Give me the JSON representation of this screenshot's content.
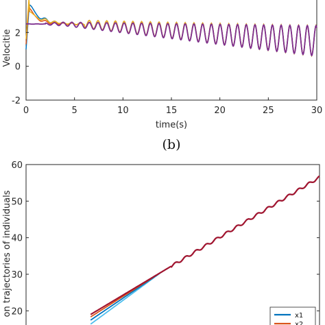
{
  "caption": "(b)",
  "chart_data": [
    {
      "type": "line",
      "xlabel": "time(s)",
      "ylabel": "Velocitie",
      "xlim": [
        0,
        30
      ],
      "ylim": [
        -2,
        4
      ],
      "xticks": [
        "0",
        "5",
        "10",
        "15",
        "20",
        "25",
        "30"
      ],
      "yticks": [
        "-2",
        "0",
        "2"
      ],
      "grid": false,
      "series": [
        {
          "color": "#0072BD",
          "values_desc": "transient"
        },
        {
          "color": "#D95319",
          "values_desc": "transient"
        },
        {
          "color": "#EDB120",
          "values_desc": "transient"
        },
        {
          "color": "#7E2F8E",
          "values_desc": "oscillation"
        }
      ],
      "oscillation": {
        "baseline": 2.5,
        "amplitude_start": 0.05,
        "amplitude_end": 0.9,
        "period": 0.9,
        "mean_end": 1.5
      }
    },
    {
      "type": "line",
      "xlabel": "",
      "ylabel": "on trajectories of individuals",
      "ylim": [
        15,
        60
      ],
      "yticks": [
        "20",
        "30",
        "40",
        "50",
        "60"
      ],
      "legend": [
        "x1",
        "x2"
      ],
      "legend_position": "bottom-right",
      "grid": false,
      "series": [
        {
          "name": "x1",
          "color": "#0072BD"
        },
        {
          "name": "x2",
          "color": "#D95319"
        },
        {
          "color": "#4DBEEE"
        },
        {
          "color": "#A2142F"
        }
      ],
      "line_start": [
        0.22,
        19
      ],
      "line_end": [
        1.0,
        56.5
      ]
    }
  ]
}
